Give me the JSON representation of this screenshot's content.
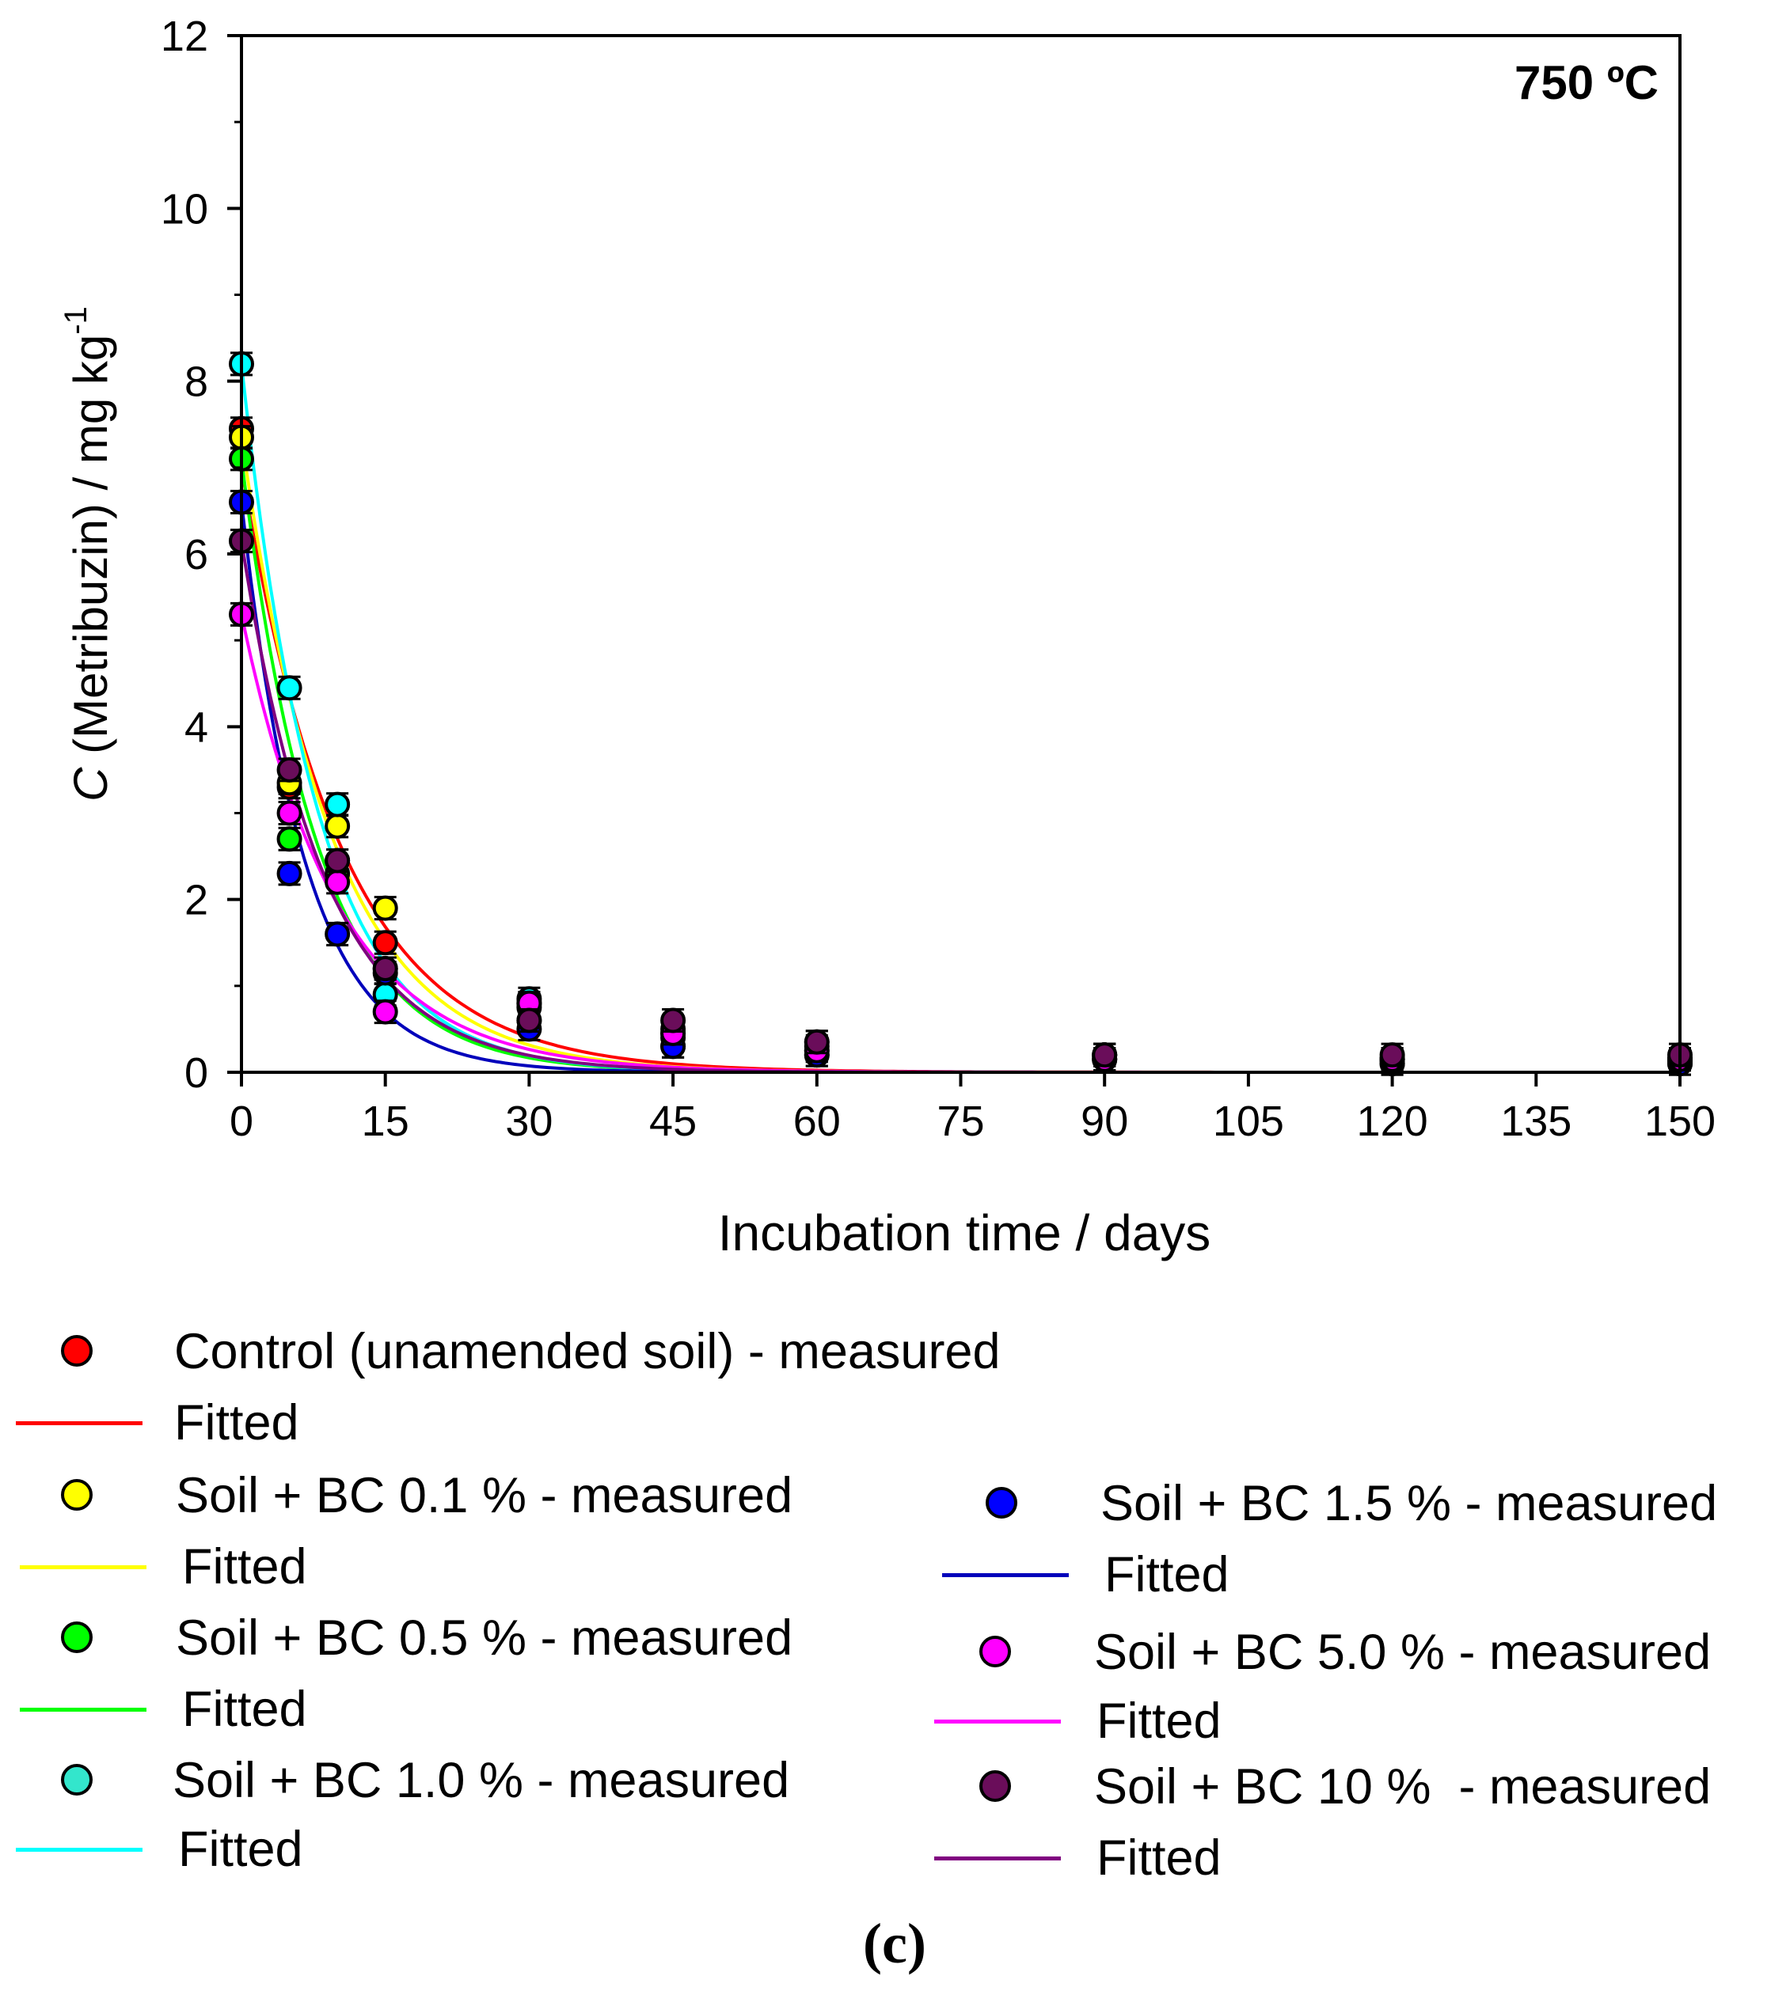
{
  "chart_data": {
    "type": "scatter",
    "annotation": "750 ºC",
    "xlabel": "Incubation time / days",
    "ylabel": {
      "italic": "C",
      "rest": " (Metribuzin) / mg kg",
      "sup": "-1"
    },
    "xlim": [
      0,
      150
    ],
    "ylim": [
      0,
      12
    ],
    "xticks": [
      0,
      15,
      30,
      45,
      60,
      75,
      90,
      105,
      120,
      135,
      150
    ],
    "yticks": [
      0,
      2,
      4,
      6,
      8,
      10,
      12
    ],
    "x": [
      0,
      5,
      10,
      15,
      30,
      45,
      60,
      90,
      120,
      150
    ],
    "series": [
      {
        "name": "Control (unamended soil) - measured",
        "fit_label": "Fitted",
        "color": "#ff0000",
        "line_color": "#ff0000",
        "C0": 7.0,
        "k": 0.095,
        "values": [
          7.45,
          3.3,
          2.45,
          1.5,
          0.75,
          0.45,
          0.25,
          0.2,
          0.15,
          0.15
        ]
      },
      {
        "name": "Soil + BC 0.1 % - measured",
        "fit_label": "Fitted",
        "color": "#ffff00",
        "line_color": "#ffff00",
        "C0": 7.35,
        "k": 0.105,
        "values": [
          7.35,
          3.35,
          2.85,
          1.9,
          0.8,
          0.4,
          0.3,
          0.2,
          0.15,
          0.15
        ]
      },
      {
        "name": "Soil + BC 0.5 % - measured",
        "fit_label": "Fitted",
        "color": "#00ff00",
        "line_color": "#00ff00",
        "C0": 7.1,
        "k": 0.125,
        "values": [
          7.1,
          2.7,
          2.3,
          1.2,
          0.6,
          0.3,
          0.2,
          0.15,
          0.1,
          0.1
        ]
      },
      {
        "name": "Soil + BC 1.0 % - measured",
        "fit_label": "Fitted",
        "color": "#00ffff",
        "line_color": "#00ffff",
        "C0": 8.2,
        "k": 0.125,
        "values": [
          8.2,
          4.45,
          3.1,
          0.9,
          0.85,
          0.5,
          0.35,
          0.2,
          0.15,
          0.15
        ]
      },
      {
        "name": "Soil + BC 1.5 % - measured",
        "fit_label": "Fitted",
        "color": "#0000ff",
        "line_color": "#0000bb",
        "C0": 6.6,
        "k": 0.15,
        "values": [
          6.6,
          2.3,
          1.6,
          1.15,
          0.5,
          0.3,
          0.2,
          0.15,
          0.1,
          0.1
        ]
      },
      {
        "name": "Soil + BC 5.0 % - measured",
        "fit_label": "Fitted",
        "color": "#ff00ff",
        "line_color": "#ff00ff",
        "C0": 5.3,
        "k": 0.1,
        "values": [
          5.3,
          3.0,
          2.2,
          0.7,
          0.8,
          0.45,
          0.25,
          0.15,
          0.15,
          0.15
        ]
      },
      {
        "name": "Soil + BC 10 %  - measured",
        "fit_label": "Fitted",
        "color": "#6a0d5a",
        "line_color": "#800080",
        "C0": 6.15,
        "k": 0.115,
        "values": [
          6.15,
          3.5,
          2.45,
          1.2,
          0.6,
          0.6,
          0.35,
          0.2,
          0.2,
          0.2
        ]
      }
    ]
  },
  "panel_label": "(c)"
}
